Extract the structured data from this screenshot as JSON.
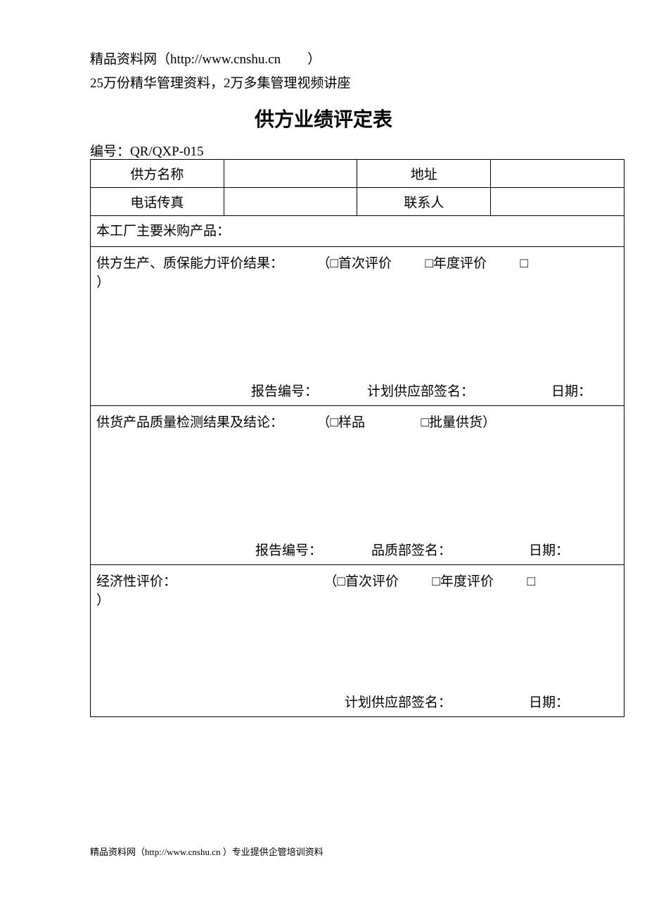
{
  "header": {
    "line1_prefix": "精品资料网（",
    "line1_url": "http://www.cnshu.cn",
    "line1_suffix": "）",
    "line2": "25万份精华管理资料，2万多集管理视频讲座"
  },
  "title": "供方业绩评定表",
  "form_number_label": "编号：",
  "form_number_value": "QR/QXP-015",
  "row_basic": {
    "supplier_name_label": "供方名称",
    "supplier_name_value": "",
    "address_label": "地址",
    "address_value": "",
    "phone_fax_label": "电话传真",
    "phone_fax_value": "",
    "contact_label": "联系人",
    "contact_value": ""
  },
  "row_products": {
    "label": "本工厂主要米购产品：",
    "value": ""
  },
  "section1": {
    "title": "供方生产、质保能力评价结果：",
    "opt1": "首次评价",
    "opt2": "年度评价",
    "opt3": "",
    "report_no_label": "报告编号：",
    "sign_label": "计划供应部签名：",
    "date_label": "日期："
  },
  "section2": {
    "title": "供货产品质量检测结果及结论：",
    "opt1": "样品",
    "opt2": "批量供货",
    "report_no_label": "报告编号：",
    "sign_label": "品质部签名：",
    "date_label": "日期："
  },
  "section3": {
    "title": "经济性评价：",
    "opt1": "首次评价",
    "opt2": "年度评价",
    "opt3": "",
    "sign_label": "计划供应部签名：",
    "date_label": "日期："
  },
  "symbols": {
    "checkbox": "□",
    "open_paren": "（",
    "close_paren": "）"
  },
  "footer": "精品资料网（http://www.cnshu.cn ）专业提供企管培训资料"
}
